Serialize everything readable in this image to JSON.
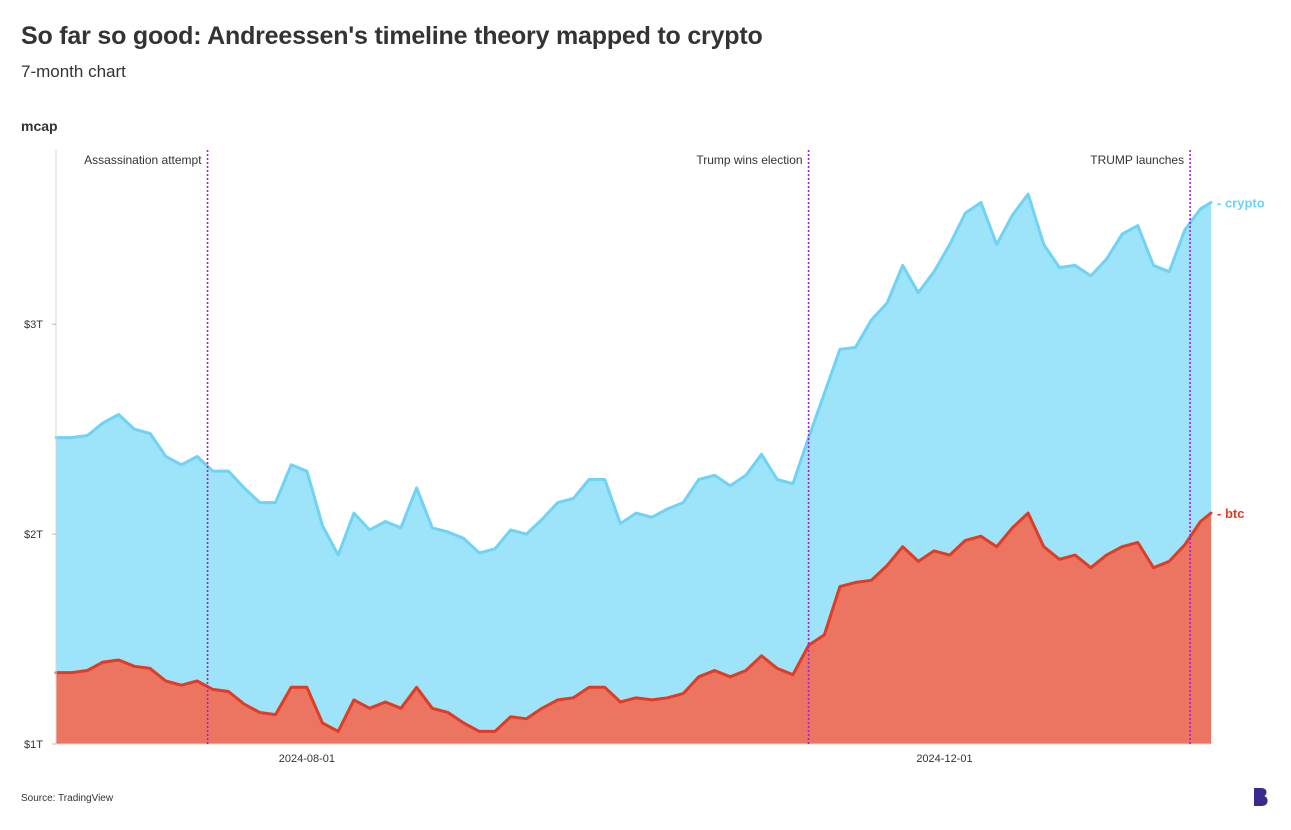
{
  "header": {
    "title": "So far so good: Andreessen's timeline theory mapped to crypto",
    "subtitle": "7-month chart"
  },
  "footer": {
    "source": "Source: TradingView"
  },
  "brand": {
    "logo_icon": "b-logo-icon",
    "logo_color": "#3b2a8c"
  },
  "chart_data": {
    "type": "area",
    "title": "So far so good: Andreessen's timeline theory mapped to crypto",
    "subtitle": "7-month chart",
    "ylabel": "mcap",
    "xlabel": "",
    "x_ticks": [
      "2024-08-01",
      "2024-12-01"
    ],
    "y_ticks": [
      {
        "value": 1.0,
        "label": "$1T"
      },
      {
        "value": 2.0,
        "label": "$2T"
      },
      {
        "value": 3.0,
        "label": "$3T"
      }
    ],
    "ylim": [
      1.0,
      3.83
    ],
    "xlim": [
      "2024-06-14",
      "2025-01-21"
    ],
    "grid": false,
    "colors": {
      "crypto_fill": "#9de3f9",
      "crypto_line": "#6fd3f5",
      "btc_fill": "#ec7562",
      "btc_line": "#e03c24",
      "event_line": "#a21fd6"
    },
    "series": [
      {
        "name": "crypto",
        "values": [
          [
            "2024-06-14",
            2.46
          ],
          [
            "2024-06-17",
            2.46
          ],
          [
            "2024-06-20",
            2.47
          ],
          [
            "2024-06-23",
            2.53
          ],
          [
            "2024-06-26",
            2.57
          ],
          [
            "2024-06-29",
            2.5
          ],
          [
            "2024-07-02",
            2.48
          ],
          [
            "2024-07-05",
            2.37
          ],
          [
            "2024-07-08",
            2.33
          ],
          [
            "2024-07-11",
            2.37
          ],
          [
            "2024-07-14",
            2.3
          ],
          [
            "2024-07-17",
            2.3
          ],
          [
            "2024-07-20",
            2.22
          ],
          [
            "2024-07-23",
            2.15
          ],
          [
            "2024-07-26",
            2.15
          ],
          [
            "2024-07-29",
            2.33
          ],
          [
            "2024-08-01",
            2.3
          ],
          [
            "2024-08-04",
            2.04
          ],
          [
            "2024-08-07",
            1.9
          ],
          [
            "2024-08-10",
            2.1
          ],
          [
            "2024-08-13",
            2.02
          ],
          [
            "2024-08-16",
            2.06
          ],
          [
            "2024-08-19",
            2.03
          ],
          [
            "2024-08-22",
            2.22
          ],
          [
            "2024-08-25",
            2.03
          ],
          [
            "2024-08-28",
            2.01
          ],
          [
            "2024-08-31",
            1.98
          ],
          [
            "2024-09-03",
            1.91
          ],
          [
            "2024-09-06",
            1.93
          ],
          [
            "2024-09-09",
            2.02
          ],
          [
            "2024-09-12",
            2.0
          ],
          [
            "2024-09-15",
            2.07
          ],
          [
            "2024-09-18",
            2.15
          ],
          [
            "2024-09-21",
            2.17
          ],
          [
            "2024-09-24",
            2.26
          ],
          [
            "2024-09-27",
            2.26
          ],
          [
            "2024-09-30",
            2.05
          ],
          [
            "2024-10-03",
            2.1
          ],
          [
            "2024-10-06",
            2.08
          ],
          [
            "2024-10-09",
            2.12
          ],
          [
            "2024-10-12",
            2.15
          ],
          [
            "2024-10-15",
            2.26
          ],
          [
            "2024-10-18",
            2.28
          ],
          [
            "2024-10-21",
            2.23
          ],
          [
            "2024-10-24",
            2.28
          ],
          [
            "2024-10-27",
            2.38
          ],
          [
            "2024-10-30",
            2.26
          ],
          [
            "2024-11-02",
            2.24
          ],
          [
            "2024-11-05",
            2.46
          ],
          [
            "2024-11-08",
            2.67
          ],
          [
            "2024-11-11",
            2.88
          ],
          [
            "2024-11-14",
            2.89
          ],
          [
            "2024-11-17",
            3.02
          ],
          [
            "2024-11-20",
            3.1
          ],
          [
            "2024-11-23",
            3.28
          ],
          [
            "2024-11-26",
            3.15
          ],
          [
            "2024-11-29",
            3.25
          ],
          [
            "2024-12-02",
            3.38
          ],
          [
            "2024-12-05",
            3.53
          ],
          [
            "2024-12-08",
            3.58
          ],
          [
            "2024-12-11",
            3.38
          ],
          [
            "2024-12-14",
            3.52
          ],
          [
            "2024-12-17",
            3.62
          ],
          [
            "2024-12-20",
            3.38
          ],
          [
            "2024-12-23",
            3.27
          ],
          [
            "2024-12-26",
            3.28
          ],
          [
            "2024-12-29",
            3.23
          ],
          [
            "2025-01-01",
            3.31
          ],
          [
            "2025-01-04",
            3.43
          ],
          [
            "2025-01-07",
            3.47
          ],
          [
            "2025-01-10",
            3.28
          ],
          [
            "2025-01-13",
            3.25
          ],
          [
            "2025-01-16",
            3.45
          ],
          [
            "2025-01-19",
            3.55
          ],
          [
            "2025-01-21",
            3.58
          ]
        ]
      },
      {
        "name": "btc",
        "values": [
          [
            "2024-06-14",
            1.34
          ],
          [
            "2024-06-17",
            1.34
          ],
          [
            "2024-06-20",
            1.35
          ],
          [
            "2024-06-23",
            1.39
          ],
          [
            "2024-06-26",
            1.4
          ],
          [
            "2024-06-29",
            1.37
          ],
          [
            "2024-07-02",
            1.36
          ],
          [
            "2024-07-05",
            1.3
          ],
          [
            "2024-07-08",
            1.28
          ],
          [
            "2024-07-11",
            1.3
          ],
          [
            "2024-07-14",
            1.26
          ],
          [
            "2024-07-17",
            1.25
          ],
          [
            "2024-07-20",
            1.19
          ],
          [
            "2024-07-23",
            1.15
          ],
          [
            "2024-07-26",
            1.14
          ],
          [
            "2024-07-29",
            1.27
          ],
          [
            "2024-08-01",
            1.27
          ],
          [
            "2024-08-04",
            1.1
          ],
          [
            "2024-08-07",
            1.06
          ],
          [
            "2024-08-10",
            1.21
          ],
          [
            "2024-08-13",
            1.17
          ],
          [
            "2024-08-16",
            1.2
          ],
          [
            "2024-08-19",
            1.17
          ],
          [
            "2024-08-22",
            1.27
          ],
          [
            "2024-08-25",
            1.17
          ],
          [
            "2024-08-28",
            1.15
          ],
          [
            "2024-08-31",
            1.1
          ],
          [
            "2024-09-03",
            1.06
          ],
          [
            "2024-09-06",
            1.06
          ],
          [
            "2024-09-09",
            1.13
          ],
          [
            "2024-09-12",
            1.12
          ],
          [
            "2024-09-15",
            1.17
          ],
          [
            "2024-09-18",
            1.21
          ],
          [
            "2024-09-21",
            1.22
          ],
          [
            "2024-09-24",
            1.27
          ],
          [
            "2024-09-27",
            1.27
          ],
          [
            "2024-09-30",
            1.2
          ],
          [
            "2024-10-03",
            1.22
          ],
          [
            "2024-10-06",
            1.21
          ],
          [
            "2024-10-09",
            1.22
          ],
          [
            "2024-10-12",
            1.24
          ],
          [
            "2024-10-15",
            1.32
          ],
          [
            "2024-10-18",
            1.35
          ],
          [
            "2024-10-21",
            1.32
          ],
          [
            "2024-10-24",
            1.35
          ],
          [
            "2024-10-27",
            1.42
          ],
          [
            "2024-10-30",
            1.36
          ],
          [
            "2024-11-02",
            1.33
          ],
          [
            "2024-11-05",
            1.47
          ],
          [
            "2024-11-08",
            1.52
          ],
          [
            "2024-11-11",
            1.75
          ],
          [
            "2024-11-14",
            1.77
          ],
          [
            "2024-11-17",
            1.78
          ],
          [
            "2024-11-20",
            1.85
          ],
          [
            "2024-11-23",
            1.94
          ],
          [
            "2024-11-26",
            1.87
          ],
          [
            "2024-11-29",
            1.92
          ],
          [
            "2024-12-02",
            1.9
          ],
          [
            "2024-12-05",
            1.97
          ],
          [
            "2024-12-08",
            1.99
          ],
          [
            "2024-12-11",
            1.94
          ],
          [
            "2024-12-14",
            2.03
          ],
          [
            "2024-12-17",
            2.1
          ],
          [
            "2024-12-20",
            1.94
          ],
          [
            "2024-12-23",
            1.88
          ],
          [
            "2024-12-26",
            1.9
          ],
          [
            "2024-12-29",
            1.84
          ],
          [
            "2025-01-01",
            1.9
          ],
          [
            "2025-01-04",
            1.94
          ],
          [
            "2025-01-07",
            1.96
          ],
          [
            "2025-01-10",
            1.84
          ],
          [
            "2025-01-13",
            1.87
          ],
          [
            "2025-01-16",
            1.95
          ],
          [
            "2025-01-19",
            2.06
          ],
          [
            "2025-01-21",
            2.1
          ]
        ]
      }
    ],
    "events": [
      {
        "date": "2024-07-13",
        "label": "Assassination attempt"
      },
      {
        "date": "2024-11-05",
        "label": "Trump wins election"
      },
      {
        "date": "2025-01-17",
        "label": "TRUMP launches"
      }
    ]
  }
}
